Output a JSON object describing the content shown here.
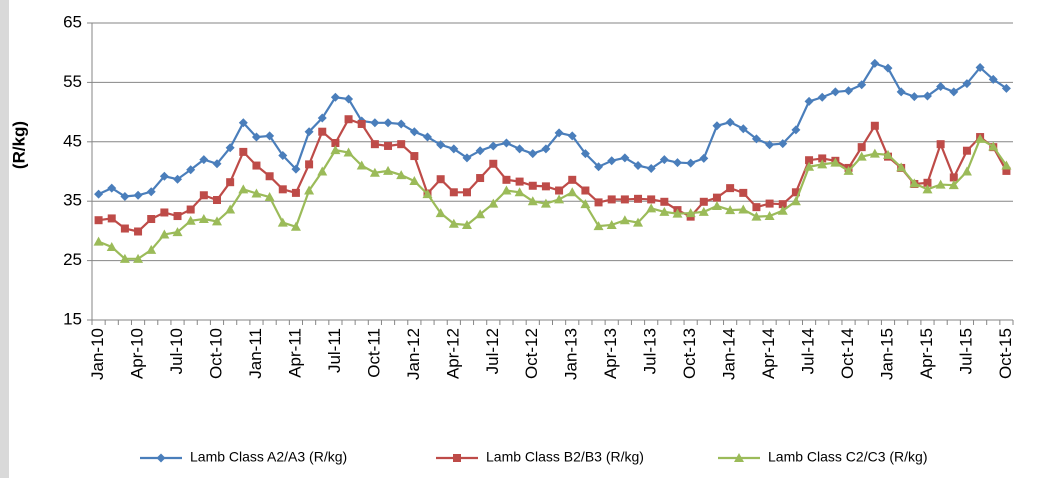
{
  "chart_data": {
    "type": "line",
    "y_label": "(R/kg)",
    "categories": [
      "Jan-10",
      null,
      null,
      "Apr-10",
      null,
      null,
      "Jul-10",
      null,
      null,
      "Oct-10",
      null,
      null,
      "Jan-11",
      null,
      null,
      "Apr-11",
      null,
      null,
      "Jul-11",
      null,
      null,
      "Oct-11",
      null,
      null,
      "Jan-12",
      null,
      null,
      "Apr-12",
      null,
      null,
      "Jul-12",
      null,
      null,
      "Oct-12",
      null,
      null,
      "Jan-13",
      null,
      null,
      "Apr-13",
      null,
      null,
      "Jul-13",
      null,
      null,
      "Oct-13",
      null,
      null,
      "Jan-14",
      null,
      null,
      "Apr-14",
      null,
      null,
      "Jul-14",
      null,
      null,
      "Oct-14",
      null,
      null,
      "Jan-15",
      null,
      null,
      "Apr-15",
      null,
      null,
      "Jul-15",
      null,
      null,
      "Oct-15"
    ],
    "series": [
      {
        "name": "Lamb Class A2/A3 (R/kg)",
        "color": "#4a7ebb",
        "marker": "diamond",
        "values": [
          36.2,
          37.2,
          35.8,
          36,
          36.6,
          39.2,
          38.7,
          40.3,
          42,
          41.3,
          44,
          48.2,
          45.8,
          46,
          42.7,
          40.4,
          46.7,
          49,
          52.5,
          52.2,
          48.5,
          48.2,
          48.2,
          48,
          46.7,
          45.8,
          44.5,
          43.8,
          42.3,
          43.5,
          44.3,
          44.8,
          43.8,
          43,
          43.8,
          46.5,
          46,
          43,
          40.8,
          41.8,
          42.3,
          41,
          40.5,
          42,
          41.5,
          41.4,
          42.2,
          47.7,
          48.3,
          47.2,
          45.5,
          44.5,
          44.7,
          47,
          51.8,
          52.5,
          53.4,
          53.6,
          54.6,
          58.2,
          57.4,
          53.4,
          52.6,
          52.7,
          54.3,
          53.4,
          54.8,
          57.5,
          55.5,
          54
        ]
      },
      {
        "name": "Lamb Class B2/B3 (R/kg)",
        "color": "#be4b48",
        "marker": "square",
        "values": [
          31.8,
          32.1,
          30.4,
          29.9,
          32,
          33.1,
          32.5,
          33.6,
          36,
          35.2,
          38.2,
          43.3,
          41,
          39.2,
          37,
          36.4,
          41.2,
          46.7,
          44.8,
          48.8,
          48,
          44.6,
          44.3,
          44.6,
          42.6,
          36.3,
          38.7,
          36.5,
          36.5,
          38.9,
          41.3,
          38.6,
          38.3,
          37.6,
          37.5,
          36.8,
          38.6,
          36.8,
          34.8,
          35.3,
          35.3,
          35.4,
          35.3,
          34.9,
          33.5,
          32.4,
          34.9,
          35.6,
          37.2,
          36.4,
          34,
          34.6,
          34.5,
          36.5,
          41.9,
          42.2,
          41.8,
          40.6,
          44.1,
          47.7,
          42.5,
          40.6,
          37.9,
          38.1,
          44.6,
          39,
          43.5,
          45.8,
          44.1,
          40.1
        ]
      },
      {
        "name": "Lamb Class C2/C3 (R/kg)",
        "color": "#9bbb59",
        "marker": "triangle",
        "values": [
          28.2,
          27.3,
          25.3,
          25.3,
          26.8,
          29.4,
          29.8,
          31.7,
          32,
          31.6,
          33.6,
          37,
          36.3,
          35.7,
          31.4,
          30.7,
          36.8,
          40,
          43.6,
          43.2,
          41,
          39.8,
          40.1,
          39.4,
          38.4,
          36.2,
          33,
          31.2,
          31,
          32.8,
          34.6,
          36.8,
          36.5,
          35,
          34.6,
          35.3,
          36.5,
          34.5,
          30.8,
          31,
          31.8,
          31.4,
          33.8,
          33.2,
          32.9,
          33,
          33.2,
          34.2,
          33.5,
          33.6,
          32.4,
          32.5,
          33.4,
          35,
          40.8,
          41.2,
          41.5,
          40.1,
          42.5,
          43,
          42.8,
          40.7,
          38,
          37,
          37.8,
          37.7,
          40,
          45.5,
          44.2,
          41
        ]
      }
    ],
    "ylim": [
      15,
      65
    ],
    "yticks": [
      15,
      25,
      35,
      45,
      55,
      65
    ],
    "grid": true,
    "legend": "bottom"
  }
}
